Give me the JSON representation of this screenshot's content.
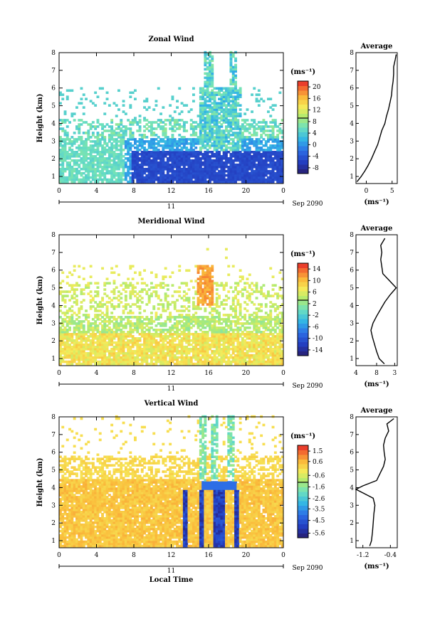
{
  "chart_data": [
    {
      "type": "heatmap",
      "title": "Zonal Wind",
      "xlabel": "",
      "ylabel": "Height (km)",
      "unit": "(ms⁻¹)",
      "date_label": "Sep 2090",
      "day_label": "11",
      "x_ticks": [
        "0",
        "4",
        "8",
        "12",
        "16",
        "20",
        "0"
      ],
      "y_ticks": [
        "1",
        "2",
        "3",
        "4",
        "5",
        "6",
        "7",
        "8"
      ],
      "xlim": [
        0,
        24
      ],
      "ylim": [
        0.6,
        8
      ],
      "colorbar_ticks": [
        "-8",
        "-4",
        "0",
        "4",
        "8",
        "12",
        "16",
        "20"
      ],
      "colorbar_range": [
        -10,
        22
      ],
      "average": {
        "title": "Average",
        "xlabel": "(ms⁻¹)",
        "x_ticks": [
          "0",
          "5"
        ],
        "xlim": [
          -2,
          6
        ],
        "height": [
          0.7,
          1.0,
          1.3,
          1.6,
          2.0,
          2.4,
          2.8,
          3.2,
          3.6,
          4.0,
          4.4,
          4.8,
          5.2,
          5.6,
          6.0,
          6.4,
          6.8,
          7.2,
          7.6,
          7.9
        ],
        "value": [
          -1.8,
          -1.0,
          -0.3,
          0.3,
          1.0,
          1.6,
          2.2,
          2.6,
          3.0,
          3.6,
          3.9,
          4.3,
          4.6,
          4.9,
          5.0,
          5.2,
          5.3,
          5.3,
          5.6,
          5.8
        ]
      }
    },
    {
      "type": "heatmap",
      "title": "Meridional Wind",
      "xlabel": "",
      "ylabel": "Height (km)",
      "unit": "(ms⁻¹)",
      "date_label": "Sep 2090",
      "day_label": "11",
      "x_ticks": [
        "0",
        "4",
        "8",
        "12",
        "16",
        "20",
        "0"
      ],
      "y_ticks": [
        "1",
        "2",
        "3",
        "4",
        "5",
        "6",
        "7",
        "8"
      ],
      "xlim": [
        0,
        24
      ],
      "ylim": [
        0.6,
        8
      ],
      "colorbar_ticks": [
        "-14",
        "-10",
        "-6",
        "-2",
        "2",
        "6",
        "10",
        "14"
      ],
      "colorbar_range": [
        -16,
        16
      ],
      "average": {
        "title": "Average",
        "xlabel": "(ms⁻¹)",
        "x_ticks": [
          "4",
          "8",
          "3"
        ],
        "xlim": [
          4,
          12
        ],
        "height": [
          0.7,
          1.0,
          1.4,
          1.8,
          2.2,
          2.6,
          3.0,
          3.4,
          3.8,
          4.2,
          4.6,
          5.0,
          5.4,
          5.8,
          6.2,
          6.6,
          7.0,
          7.4,
          7.8
        ],
        "value": [
          9.5,
          8.5,
          8.0,
          7.6,
          7.2,
          6.9,
          7.3,
          8.0,
          8.8,
          9.6,
          10.6,
          11.8,
          10.5,
          9.2,
          9.0,
          8.8,
          9.0,
          8.8,
          9.6
        ]
      }
    },
    {
      "type": "heatmap",
      "title": "Vertical Wind",
      "xlabel": "Local Time",
      "ylabel": "Height (km)",
      "unit": "(ms⁻¹)",
      "date_label": "Sep 2090",
      "day_label": "11",
      "x_ticks": [
        "0",
        "4",
        "8",
        "12",
        "16",
        "20",
        "0"
      ],
      "y_ticks": [
        "1",
        "2",
        "3",
        "4",
        "5",
        "6",
        "7",
        "8"
      ],
      "xlim": [
        0,
        24
      ],
      "ylim": [
        0.6,
        8
      ],
      "colorbar_ticks": [
        "-5.6",
        "-4.5",
        "-3.5",
        "-2.6",
        "-1.6",
        "-0.6",
        "0.6",
        "1.5"
      ],
      "colorbar_range": [
        -6,
        2
      ],
      "average": {
        "title": "Average",
        "xlabel": "(ms⁻¹)",
        "x_ticks": [
          "-1.2",
          "-0.4"
        ],
        "xlim": [
          -1.4,
          -0.2
        ],
        "height": [
          0.7,
          1.0,
          1.5,
          2.0,
          2.5,
          3.0,
          3.4,
          3.7,
          3.9,
          4.1,
          4.4,
          4.8,
          5.2,
          5.6,
          6.0,
          6.4,
          6.8,
          7.2,
          7.6,
          7.9
        ],
        "value": [
          -1.0,
          -0.95,
          -0.92,
          -0.9,
          -0.88,
          -0.85,
          -0.9,
          -1.2,
          -1.4,
          -1.2,
          -0.8,
          -0.7,
          -0.6,
          -0.55,
          -0.58,
          -0.6,
          -0.55,
          -0.45,
          -0.5,
          -0.3
        ]
      }
    }
  ]
}
